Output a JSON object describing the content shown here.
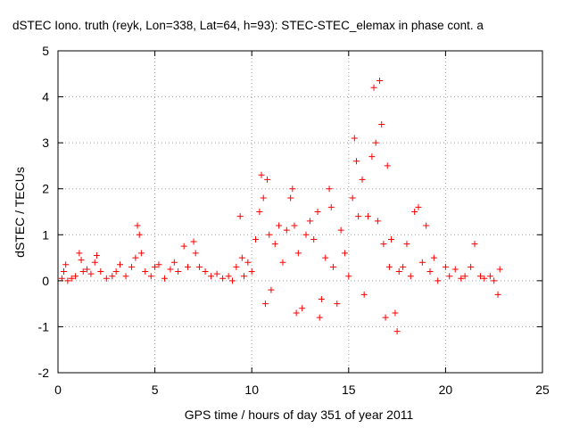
{
  "chart_data": {
    "type": "scatter",
    "title": "dSTEC Iono. truth (reyk, Lon=338, Lat=64, h=93): STEC-STEC_elemax in phase cont. a",
    "xlabel": "GPS time / hours of day 351 of year 2011",
    "ylabel": "dSTEC  / TECUs",
    "xlim": [
      0,
      25
    ],
    "ylim": [
      -2,
      5
    ],
    "xticks": [
      "0",
      "5",
      "10",
      "15",
      "20",
      "25"
    ],
    "yticks": [
      "-2",
      "-1",
      "0",
      "1",
      "2",
      "3",
      "4",
      "5"
    ],
    "grid": true,
    "marker": "+",
    "colors": {
      "series": "#ff0000",
      "grid": "#a0a0a0"
    },
    "series": [
      {
        "points": [
          [
            0.2,
            0.05
          ],
          [
            0.3,
            0.2
          ],
          [
            0.4,
            0.35
          ],
          [
            0.5,
            0.0
          ],
          [
            0.7,
            0.05
          ],
          [
            0.9,
            0.1
          ],
          [
            1.1,
            0.6
          ],
          [
            1.2,
            0.45
          ],
          [
            1.3,
            0.2
          ],
          [
            1.5,
            0.25
          ],
          [
            1.7,
            0.15
          ],
          [
            1.9,
            0.4
          ],
          [
            2.0,
            0.55
          ],
          [
            2.2,
            0.2
          ],
          [
            2.5,
            0.05
          ],
          [
            2.8,
            0.1
          ],
          [
            3.0,
            0.2
          ],
          [
            3.2,
            0.35
          ],
          [
            3.5,
            0.1
          ],
          [
            3.8,
            0.3
          ],
          [
            4.0,
            0.5
          ],
          [
            4.1,
            1.2
          ],
          [
            4.2,
            1.0
          ],
          [
            4.3,
            0.6
          ],
          [
            4.5,
            0.2
          ],
          [
            4.8,
            0.1
          ],
          [
            5.0,
            0.3
          ],
          [
            5.2,
            0.35
          ],
          [
            5.5,
            0.05
          ],
          [
            5.8,
            0.25
          ],
          [
            6.0,
            0.4
          ],
          [
            6.2,
            0.2
          ],
          [
            6.5,
            0.75
          ],
          [
            6.7,
            0.3
          ],
          [
            7.0,
            0.85
          ],
          [
            7.1,
            0.6
          ],
          [
            7.3,
            0.3
          ],
          [
            7.6,
            0.2
          ],
          [
            7.9,
            0.1
          ],
          [
            8.2,
            0.15
          ],
          [
            8.5,
            0.05
          ],
          [
            8.8,
            0.1
          ],
          [
            9.0,
            0.0
          ],
          [
            9.2,
            0.3
          ],
          [
            9.4,
            1.4
          ],
          [
            9.5,
            0.5
          ],
          [
            9.6,
            0.1
          ],
          [
            9.8,
            0.4
          ],
          [
            10.0,
            0.2
          ],
          [
            10.2,
            0.9
          ],
          [
            10.4,
            1.5
          ],
          [
            10.5,
            2.3
          ],
          [
            10.6,
            1.8
          ],
          [
            10.7,
            -0.5
          ],
          [
            10.8,
            2.2
          ],
          [
            10.9,
            1.0
          ],
          [
            11.0,
            -0.2
          ],
          [
            11.2,
            0.8
          ],
          [
            11.4,
            1.2
          ],
          [
            11.6,
            0.4
          ],
          [
            11.8,
            1.1
          ],
          [
            12.0,
            1.8
          ],
          [
            12.1,
            2.0
          ],
          [
            12.2,
            1.2
          ],
          [
            12.3,
            -0.7
          ],
          [
            12.4,
            0.6
          ],
          [
            12.6,
            -0.6
          ],
          [
            12.8,
            1.0
          ],
          [
            13.0,
            1.3
          ],
          [
            13.2,
            0.9
          ],
          [
            13.4,
            1.5
          ],
          [
            13.5,
            -0.8
          ],
          [
            13.6,
            -0.4
          ],
          [
            13.8,
            0.5
          ],
          [
            14.0,
            2.0
          ],
          [
            14.1,
            1.6
          ],
          [
            14.2,
            0.3
          ],
          [
            14.4,
            -0.5
          ],
          [
            14.6,
            1.1
          ],
          [
            14.8,
            0.6
          ],
          [
            15.0,
            0.1
          ],
          [
            15.2,
            1.8
          ],
          [
            15.3,
            3.1
          ],
          [
            15.4,
            2.6
          ],
          [
            15.5,
            1.4
          ],
          [
            15.7,
            2.2
          ],
          [
            15.8,
            -0.3
          ],
          [
            16.0,
            1.4
          ],
          [
            16.2,
            2.7
          ],
          [
            16.3,
            4.2
          ],
          [
            16.4,
            3.0
          ],
          [
            16.5,
            1.3
          ],
          [
            16.6,
            4.35
          ],
          [
            16.7,
            3.4
          ],
          [
            16.8,
            0.8
          ],
          [
            16.9,
            -0.8
          ],
          [
            17.0,
            2.5
          ],
          [
            17.1,
            0.3
          ],
          [
            17.2,
            0.9
          ],
          [
            17.4,
            -0.7
          ],
          [
            17.5,
            -1.1
          ],
          [
            17.6,
            0.2
          ],
          [
            17.8,
            0.3
          ],
          [
            18.0,
            0.8
          ],
          [
            18.2,
            0.1
          ],
          [
            18.4,
            1.5
          ],
          [
            18.6,
            1.6
          ],
          [
            18.8,
            0.4
          ],
          [
            19.0,
            1.2
          ],
          [
            19.2,
            0.2
          ],
          [
            19.4,
            0.5
          ],
          [
            19.6,
            0.0
          ],
          [
            20.0,
            0.3
          ],
          [
            20.2,
            0.1
          ],
          [
            20.5,
            0.25
          ],
          [
            20.8,
            0.05
          ],
          [
            21.0,
            0.1
          ],
          [
            21.3,
            0.3
          ],
          [
            21.5,
            0.8
          ],
          [
            21.8,
            0.1
          ],
          [
            22.0,
            0.05
          ],
          [
            22.3,
            0.1
          ],
          [
            22.5,
            0.0
          ],
          [
            22.7,
            -0.3
          ],
          [
            22.8,
            0.25
          ]
        ]
      }
    ]
  }
}
